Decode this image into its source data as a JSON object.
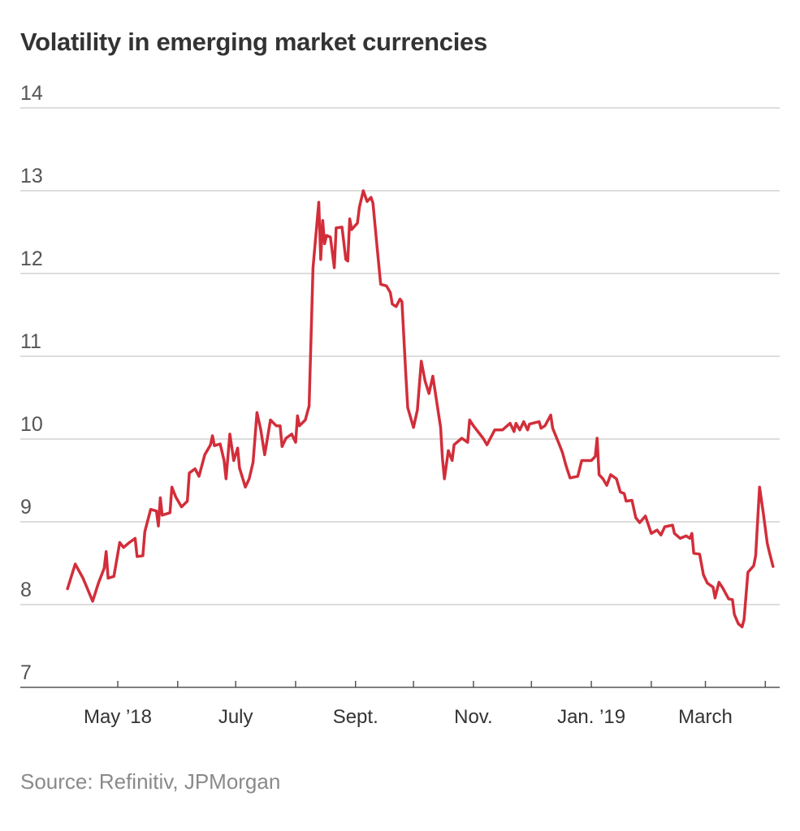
{
  "chart_data": {
    "type": "line",
    "title": "Volatility in emerging market currencies",
    "source": "Source: Refinitiv, JPMorgan",
    "xlabel": "",
    "ylabel": "",
    "ylim": [
      7,
      14
    ],
    "yticks": [
      7,
      8,
      9,
      10,
      11,
      12,
      13,
      14
    ],
    "xlim": [
      "2018-04-01",
      "2019-04-08"
    ],
    "xticks": [
      "2018-05-01",
      "2018-06-01",
      "2018-07-01",
      "2018-08-01",
      "2018-09-01",
      "2018-10-01",
      "2018-11-01",
      "2018-12-01",
      "2019-01-01",
      "2019-02-01",
      "2019-03-01",
      "2019-04-01"
    ],
    "xtick_labels": [
      {
        "date": "2018-05-01",
        "label": "May ’18"
      },
      {
        "date": "2018-07-01",
        "label": "July"
      },
      {
        "date": "2018-09-01",
        "label": "Sept."
      },
      {
        "date": "2018-11-01",
        "label": "Nov."
      },
      {
        "date": "2019-01-01",
        "label": "Jan. ’19"
      },
      {
        "date": "2019-03-01",
        "label": "March"
      }
    ],
    "grid": true,
    "line_color": "#d22e3a",
    "series": [
      {
        "dates": [
          "2018-04-05",
          "2018-04-09",
          "2018-04-13",
          "2018-04-18",
          "2018-04-21",
          "2018-04-24",
          "2018-04-25",
          "2018-04-26",
          "2018-04-29",
          "2018-05-02",
          "2018-05-04",
          "2018-05-07",
          "2018-05-10",
          "2018-05-11",
          "2018-05-14",
          "2018-05-15",
          "2018-05-18",
          "2018-05-21",
          "2018-05-22",
          "2018-05-23",
          "2018-05-24",
          "2018-05-28",
          "2018-05-29",
          "2018-05-31",
          "2018-06-03",
          "2018-06-06",
          "2018-06-07",
          "2018-06-10",
          "2018-06-12",
          "2018-06-15",
          "2018-06-18",
          "2018-06-19",
          "2018-06-20",
          "2018-06-23",
          "2018-06-25",
          "2018-06-26",
          "2018-06-28",
          "2018-06-30",
          "2018-07-02",
          "2018-07-03",
          "2018-07-06",
          "2018-07-08",
          "2018-07-10",
          "2018-07-12",
          "2018-07-14",
          "2018-07-16",
          "2018-07-19",
          "2018-07-22",
          "2018-07-24",
          "2018-07-25",
          "2018-07-27",
          "2018-07-30",
          "2018-08-01",
          "2018-08-02",
          "2018-08-03",
          "2018-08-06",
          "2018-08-08",
          "2018-08-10",
          "2018-08-13",
          "2018-08-14",
          "2018-08-15",
          "2018-08-16",
          "2018-08-17",
          "2018-08-19",
          "2018-08-21",
          "2018-08-22",
          "2018-08-25",
          "2018-08-27",
          "2018-08-28",
          "2018-08-29",
          "2018-08-30",
          "2018-09-02",
          "2018-09-03",
          "2018-09-05",
          "2018-09-07",
          "2018-09-09",
          "2018-09-10",
          "2018-09-12",
          "2018-09-14",
          "2018-09-17",
          "2018-09-19",
          "2018-09-20",
          "2018-09-22",
          "2018-09-24",
          "2018-09-25",
          "2018-09-27",
          "2018-09-28",
          "2018-10-01",
          "2018-10-03",
          "2018-10-05",
          "2018-10-07",
          "2018-10-09",
          "2018-10-11",
          "2018-10-13",
          "2018-10-15",
          "2018-10-16",
          "2018-10-17",
          "2018-10-19",
          "2018-10-21",
          "2018-10-22",
          "2018-10-26",
          "2018-10-29",
          "2018-10-30",
          "2018-11-01",
          "2018-11-06",
          "2018-11-08",
          "2018-11-12",
          "2018-11-16",
          "2018-11-20",
          "2018-11-22",
          "2018-11-23",
          "2018-11-25",
          "2018-11-27",
          "2018-11-29",
          "2018-11-30",
          "2018-12-05",
          "2018-12-06",
          "2018-12-08",
          "2018-12-11",
          "2018-12-12",
          "2018-12-15",
          "2018-12-17",
          "2018-12-19",
          "2018-12-21",
          "2018-12-25",
          "2018-12-27",
          "2019-01-01",
          "2019-01-03",
          "2019-01-04",
          "2019-01-05",
          "2019-01-07",
          "2019-01-09",
          "2019-01-11",
          "2019-01-14",
          "2019-01-16",
          "2019-01-18",
          "2019-01-19",
          "2019-01-22",
          "2019-01-24",
          "2019-01-26",
          "2019-01-29",
          "2019-02-01",
          "2019-02-04",
          "2019-02-06",
          "2019-02-08",
          "2019-02-12",
          "2019-02-13",
          "2019-02-16",
          "2019-02-19",
          "2019-02-21",
          "2019-02-22",
          "2019-02-23",
          "2019-02-26",
          "2019-02-28",
          "2019-03-02",
          "2019-03-05",
          "2019-03-06",
          "2019-03-08",
          "2019-03-10",
          "2019-03-13",
          "2019-03-15",
          "2019-03-16",
          "2019-03-18",
          "2019-03-20",
          "2019-03-21",
          "2019-03-23",
          "2019-03-26",
          "2019-03-27",
          "2019-03-29",
          "2019-03-31",
          "2019-04-02",
          "2019-04-03",
          "2019-04-05"
        ],
        "values": [
          8.19,
          8.49,
          8.32,
          8.04,
          8.26,
          8.44,
          8.64,
          8.32,
          8.34,
          8.75,
          8.69,
          8.75,
          8.8,
          8.58,
          8.59,
          8.88,
          9.15,
          9.13,
          8.95,
          9.29,
          9.08,
          9.11,
          9.42,
          9.3,
          9.18,
          9.25,
          9.59,
          9.64,
          9.55,
          9.81,
          9.93,
          10.04,
          9.92,
          9.94,
          9.74,
          9.52,
          10.06,
          9.74,
          9.89,
          9.65,
          9.42,
          9.52,
          9.72,
          10.32,
          10.11,
          9.81,
          10.23,
          10.16,
          10.16,
          9.91,
          10.01,
          10.06,
          9.96,
          10.28,
          10.16,
          10.23,
          10.4,
          12.07,
          12.86,
          12.17,
          12.64,
          12.36,
          12.46,
          12.44,
          12.07,
          12.55,
          12.56,
          12.17,
          12.15,
          12.66,
          12.53,
          12.61,
          12.8,
          13.0,
          12.87,
          12.92,
          12.85,
          12.36,
          11.87,
          11.85,
          11.77,
          11.63,
          11.6,
          11.69,
          11.66,
          10.79,
          10.38,
          10.14,
          10.35,
          10.94,
          10.7,
          10.55,
          10.76,
          10.45,
          10.14,
          9.76,
          9.52,
          9.86,
          9.74,
          9.93,
          10.01,
          9.96,
          10.23,
          10.16,
          10.01,
          9.93,
          10.11,
          10.11,
          10.19,
          10.09,
          10.19,
          10.11,
          10.21,
          10.11,
          10.18,
          10.21,
          10.13,
          10.16,
          10.29,
          10.13,
          9.96,
          9.84,
          9.67,
          9.53,
          9.55,
          9.74,
          9.74,
          9.79,
          10.01,
          9.57,
          9.52,
          9.44,
          9.57,
          9.52,
          9.36,
          9.34,
          9.25,
          9.26,
          9.05,
          8.99,
          9.07,
          8.86,
          8.9,
          8.84,
          8.94,
          8.96,
          8.86,
          8.8,
          8.83,
          8.8,
          8.86,
          8.62,
          8.61,
          8.36,
          8.26,
          8.21,
          8.08,
          8.27,
          8.2,
          8.07,
          8.06,
          7.88,
          7.77,
          7.73,
          7.82,
          8.39,
          8.47,
          8.59,
          9.42,
          9.1,
          8.74,
          8.64,
          8.46
        ]
      }
    ]
  }
}
